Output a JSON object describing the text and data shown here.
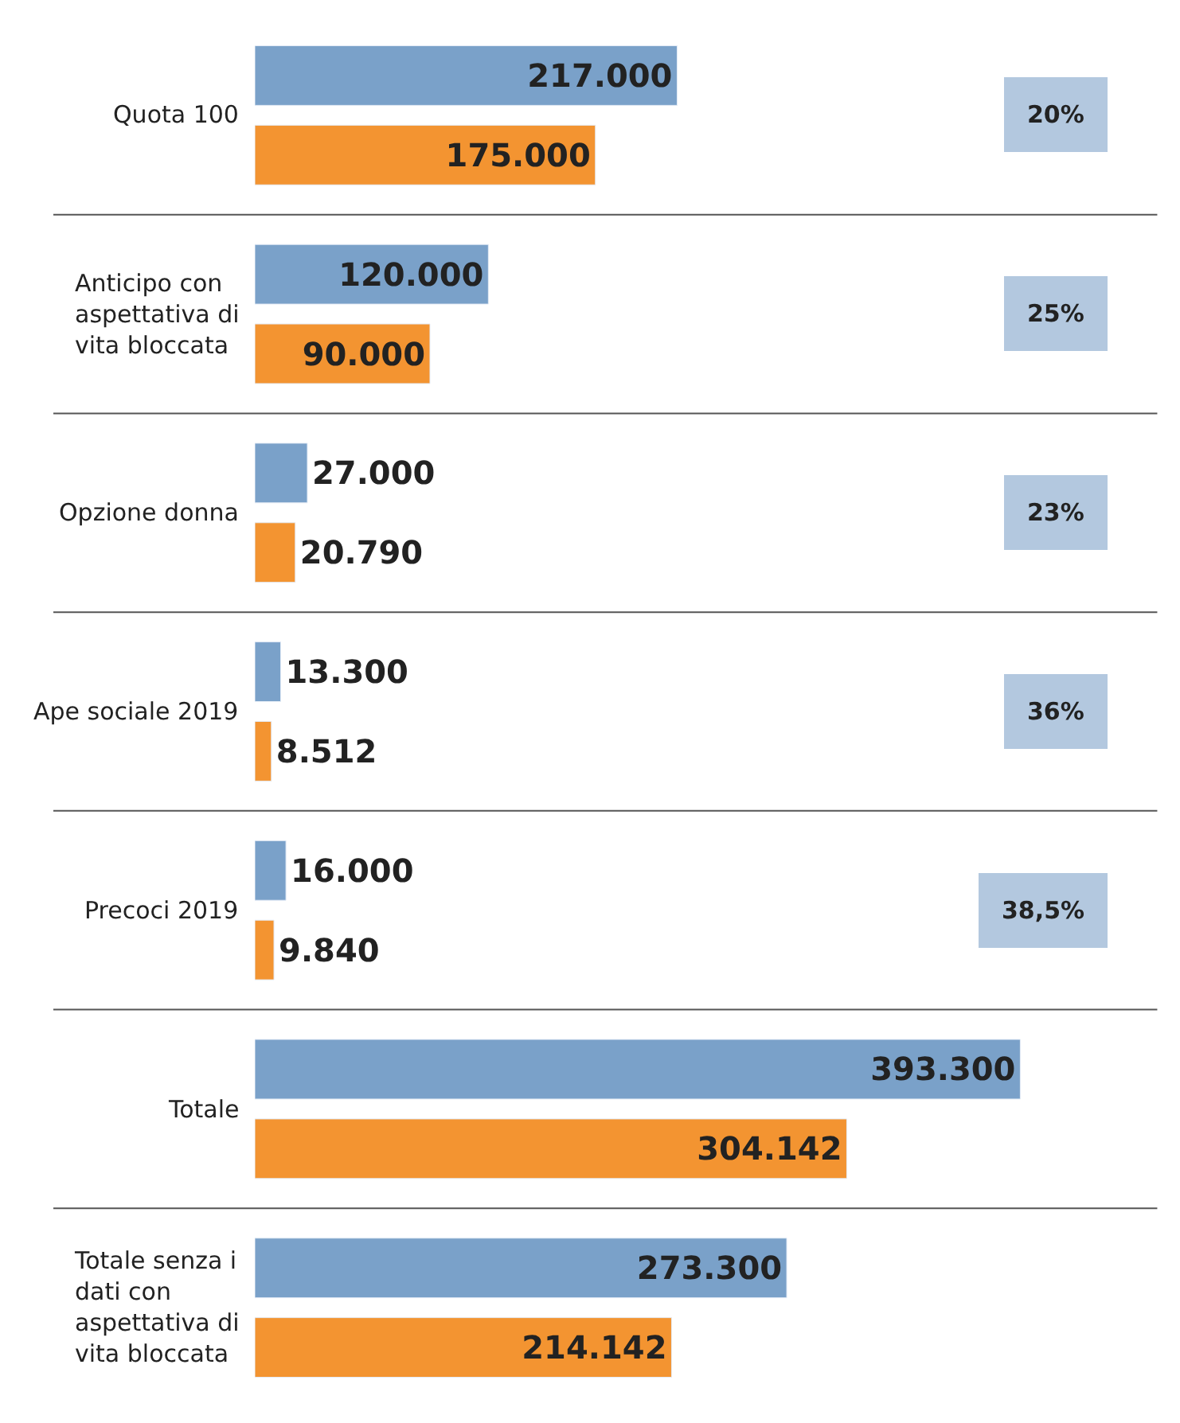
{
  "chart_data": {
    "type": "bar",
    "orientation": "horizontal",
    "categories": [
      "Quota 100",
      "Anticipo con aspettativa di vita bloccata",
      "Opzione donna",
      "Ape sociale 2019",
      "Precoci 2019",
      "Totale",
      "Totale senza i dati con aspettativa di vita bloccata"
    ],
    "series": [
      {
        "color": "#7aa1c9",
        "values": [
          217000,
          120000,
          27000,
          13300,
          16000,
          393300,
          273300
        ],
        "value_labels": [
          "217.000",
          "120.000",
          "27.000",
          "13.300",
          "16.000",
          "393.300",
          "273.300"
        ]
      },
      {
        "color": "#f39431",
        "values": [
          175000,
          90000,
          20790,
          8512,
          9840,
          304142,
          214142
        ],
        "value_labels": [
          "175.000",
          "90.000",
          "20.790",
          "8.512",
          "9.840",
          "304.142",
          "214.142"
        ]
      }
    ],
    "annotations": [
      "20%",
      "25%",
      "23%",
      "36%",
      "38,5%"
    ],
    "tick_labels": false
  }
}
